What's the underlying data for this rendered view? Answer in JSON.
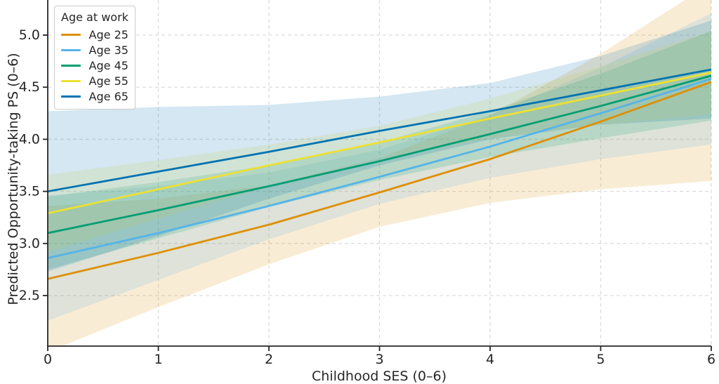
{
  "figure": {
    "background": "#ffffff"
  },
  "chart_data": {
    "type": "line",
    "title": "",
    "xlabel": "Childhood SES (0–6)",
    "ylabel": "Predicted Opportunity-taking PS (0–6)",
    "x": [
      0,
      1,
      2,
      3,
      4,
      5,
      6
    ],
    "xticks": [
      0,
      1,
      2,
      3,
      4,
      5,
      6
    ],
    "yticks": [
      2.5,
      3.0,
      3.5,
      4.0,
      4.5,
      5.0
    ],
    "xlim": [
      0,
      6
    ],
    "ylim": [
      2.015,
      5.337
    ],
    "grid": {
      "visible": true,
      "style": "dashed",
      "color": "#dcdcdc",
      "axes": "both"
    },
    "spines": {
      "left": true,
      "bottom": true,
      "top": false,
      "right": false,
      "color": "#262626"
    },
    "band_opacity": 0.17,
    "legend": {
      "title": "Age at work",
      "position": "upper-left"
    },
    "series": [
      {
        "name": "Age 25",
        "color": "#de8f05",
        "values": [
          2.66,
          2.91,
          3.18,
          3.49,
          3.81,
          4.17,
          4.55
        ],
        "ci_lower": [
          1.96,
          2.39,
          2.8,
          3.16,
          3.39,
          3.52,
          3.6
        ],
        "ci_upper": [
          3.36,
          3.43,
          3.56,
          3.82,
          4.23,
          4.82,
          5.5
        ]
      },
      {
        "name": "Age 35",
        "color": "#56b4e9",
        "values": [
          2.86,
          3.1,
          3.36,
          3.64,
          3.93,
          4.25,
          4.58
        ],
        "ci_lower": [
          2.26,
          2.65,
          3.04,
          3.38,
          3.63,
          3.81,
          3.95
        ],
        "ci_upper": [
          3.46,
          3.55,
          3.68,
          3.9,
          4.23,
          4.69,
          5.21
        ]
      },
      {
        "name": "Age 45",
        "color": "#029e73",
        "values": [
          3.1,
          3.32,
          3.55,
          3.79,
          4.05,
          4.32,
          4.61
        ],
        "ci_lower": [
          2.75,
          3.05,
          3.35,
          3.61,
          3.83,
          4.01,
          4.18
        ],
        "ci_upper": [
          3.45,
          3.59,
          3.75,
          3.97,
          4.27,
          4.63,
          5.04
        ]
      },
      {
        "name": "Age 55",
        "color": "#ece133",
        "values": [
          3.29,
          3.52,
          3.75,
          3.97,
          4.2,
          4.42,
          4.64
        ],
        "ci_lower": [
          2.92,
          3.24,
          3.55,
          3.81,
          4.01,
          4.14,
          4.24
        ],
        "ci_upper": [
          3.66,
          3.8,
          3.95,
          4.13,
          4.39,
          4.7,
          5.04
        ]
      },
      {
        "name": "Age 65",
        "color": "#0173b2",
        "values": [
          3.5,
          3.69,
          3.88,
          4.08,
          4.27,
          4.47,
          4.67
        ],
        "ci_lower": [
          2.73,
          3.07,
          3.43,
          3.75,
          4.0,
          4.14,
          4.2
        ],
        "ci_upper": [
          4.27,
          4.31,
          4.33,
          4.41,
          4.54,
          4.8,
          5.14
        ]
      }
    ]
  }
}
